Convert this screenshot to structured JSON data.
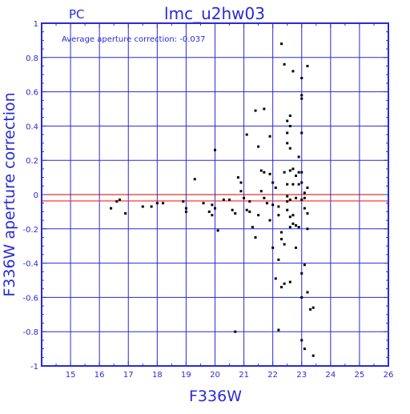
{
  "header": {
    "detector": "PC",
    "title": "lmc_u2hw03",
    "annotation": "Average aperture correction: -0.037"
  },
  "colors": {
    "frame": "#2a2ad6",
    "text": "#2a2ad6",
    "points": "#000000",
    "zero_line": "#cc0000",
    "mean_line": "#ff2020"
  },
  "chart_data": {
    "type": "scatter",
    "title": "lmc_u2hw03",
    "xlabel": "F336W",
    "ylabel": "F336W aperture correction",
    "xlim": [
      14,
      26
    ],
    "ylim": [
      -1,
      1
    ],
    "xticks": [
      15,
      16,
      17,
      18,
      19,
      20,
      21,
      22,
      23,
      24,
      25,
      26
    ],
    "xtick_labels": [
      "15",
      "16",
      "17",
      "18",
      "19",
      "20",
      "21",
      "22",
      "23",
      "24",
      "25",
      "26"
    ],
    "yticks": [
      -1,
      -0.8,
      -0.6,
      -0.4,
      -0.2,
      0,
      0.2,
      0.4,
      0.6,
      0.8,
      1
    ],
    "ytick_labels": [
      "-1",
      "-0.8",
      "-0.6",
      "-0.4",
      "-0.2",
      "0",
      "0.2",
      "0.4",
      "0.6",
      "0.8",
      "1"
    ],
    "grid": true,
    "reference_lines": [
      {
        "y": 0.0
      },
      {
        "y": -0.037
      }
    ],
    "points": [
      [
        16.4,
        -0.08
      ],
      [
        16.6,
        -0.04
      ],
      [
        16.7,
        -0.03
      ],
      [
        16.9,
        -0.11
      ],
      [
        17.5,
        -0.07
      ],
      [
        17.8,
        -0.07
      ],
      [
        18.0,
        -0.05
      ],
      [
        18.2,
        -0.05
      ],
      [
        18.9,
        -0.04
      ],
      [
        19.0,
        -0.1
      ],
      [
        19.0,
        -0.08
      ],
      [
        19.3,
        0.09
      ],
      [
        19.6,
        -0.05
      ],
      [
        19.8,
        -0.1
      ],
      [
        19.9,
        -0.06
      ],
      [
        19.9,
        -0.12
      ],
      [
        20.0,
        0.26
      ],
      [
        20.0,
        -0.08
      ],
      [
        20.1,
        -0.21
      ],
      [
        20.3,
        -0.03
      ],
      [
        20.5,
        -0.03
      ],
      [
        20.6,
        -0.09
      ],
      [
        20.7,
        -0.11
      ],
      [
        20.7,
        -0.8
      ],
      [
        20.8,
        0.1
      ],
      [
        20.9,
        0.07
      ],
      [
        20.9,
        0.02
      ],
      [
        21.0,
        -0.02
      ],
      [
        21.1,
        0.35
      ],
      [
        21.1,
        -0.09
      ],
      [
        21.2,
        -0.04
      ],
      [
        21.2,
        -0.1
      ],
      [
        21.3,
        -0.19
      ],
      [
        21.4,
        0.49
      ],
      [
        21.4,
        -0.25
      ],
      [
        21.5,
        0.28
      ],
      [
        21.5,
        -0.12
      ],
      [
        21.6,
        0.14
      ],
      [
        21.6,
        0.02
      ],
      [
        21.7,
        0.5
      ],
      [
        21.7,
        0.13
      ],
      [
        21.7,
        -0.02
      ],
      [
        21.8,
        -0.05
      ],
      [
        21.9,
        0.34
      ],
      [
        21.9,
        0.12
      ],
      [
        21.9,
        -0.15
      ],
      [
        22.0,
        0.07
      ],
      [
        22.0,
        -0.31
      ],
      [
        22.0,
        -0.06
      ],
      [
        22.1,
        0.04
      ],
      [
        22.1,
        -0.49
      ],
      [
        22.2,
        -0.79
      ],
      [
        22.2,
        -0.38
      ],
      [
        22.2,
        -0.12
      ],
      [
        22.2,
        -0.07
      ],
      [
        22.3,
        0.88
      ],
      [
        22.3,
        -0.26
      ],
      [
        22.3,
        -0.22
      ],
      [
        22.3,
        -0.54
      ],
      [
        22.4,
        0.76
      ],
      [
        22.4,
        0.13
      ],
      [
        22.4,
        -0.52
      ],
      [
        22.4,
        -0.29
      ],
      [
        22.5,
        -0.04
      ],
      [
        22.5,
        0.43
      ],
      [
        22.5,
        0.36
      ],
      [
        22.5,
        0.3
      ],
      [
        22.5,
        0.06
      ],
      [
        22.5,
        -0.01
      ],
      [
        22.5,
        -0.09
      ],
      [
        22.6,
        0.46
      ],
      [
        22.6,
        0.4
      ],
      [
        22.6,
        0.27
      ],
      [
        22.6,
        0.14
      ],
      [
        22.6,
        -0.03
      ],
      [
        22.6,
        -0.13
      ],
      [
        22.6,
        -0.19
      ],
      [
        22.6,
        -0.51
      ],
      [
        22.7,
        0.72
      ],
      [
        22.7,
        0.15
      ],
      [
        22.7,
        0.06
      ],
      [
        22.7,
        -0.12
      ],
      [
        22.7,
        -0.17
      ],
      [
        22.8,
        0.11
      ],
      [
        22.8,
        -0.02
      ],
      [
        22.8,
        -0.18
      ],
      [
        22.8,
        -0.31
      ],
      [
        22.9,
        0.22
      ],
      [
        22.9,
        0.13
      ],
      [
        22.9,
        0.06
      ],
      [
        22.9,
        -0.19
      ],
      [
        23.0,
        0.68
      ],
      [
        23.0,
        0.56
      ],
      [
        23.0,
        0.58
      ],
      [
        23.0,
        0.36
      ],
      [
        23.0,
        0.13
      ],
      [
        23.0,
        0.07
      ],
      [
        23.0,
        -0.03
      ],
      [
        23.0,
        -0.46
      ],
      [
        23.0,
        -0.6
      ],
      [
        23.0,
        -0.85
      ],
      [
        23.1,
        0.01
      ],
      [
        23.1,
        -0.02
      ],
      [
        23.1,
        -0.08
      ],
      [
        23.1,
        -0.41
      ],
      [
        23.1,
        -0.9
      ],
      [
        23.2,
        0.75
      ],
      [
        23.2,
        0.04
      ],
      [
        23.2,
        -0.11
      ],
      [
        23.2,
        -0.57
      ],
      [
        23.2,
        -0.2
      ],
      [
        23.3,
        -0.67
      ],
      [
        23.4,
        -0.66
      ],
      [
        23.4,
        -0.94
      ]
    ]
  }
}
